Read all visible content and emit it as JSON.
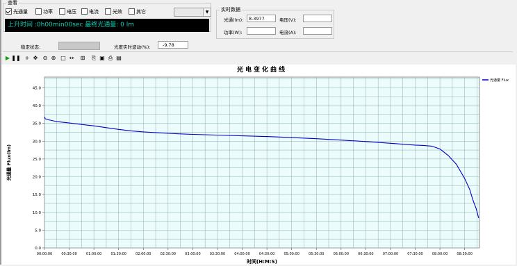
{
  "view_group": {
    "title": "查看",
    "checkboxes": [
      {
        "label": "光通量",
        "checked": true
      },
      {
        "label": "功率",
        "checked": false
      },
      {
        "label": "电压",
        "checked": false
      },
      {
        "label": "电流",
        "checked": false
      },
      {
        "label": "光效",
        "checked": false
      },
      {
        "label": "其它",
        "checked": false
      }
    ],
    "display_text": "上升时间 :0h00min00sec  最终光通量: 0 lm"
  },
  "realtime_group": {
    "title": "实时数据",
    "flux_label": "光通(lm):",
    "flux_value": "8.3977",
    "voltage_label": "电压(V):",
    "voltage_value": "",
    "power_label": "功率(W):",
    "power_value": "",
    "current_label": "电流(A):",
    "current_value": ""
  },
  "status": {
    "stability_label": "稳定状态:",
    "fluctuation_label": "光度实时波动(%):",
    "fluctuation_value": "-9.78"
  },
  "toolbar": {
    "icons": [
      "play-icon",
      "pause-icon",
      "crosshair-icon",
      "pan-icon",
      "zoom-out-icon",
      "zoom-in-icon",
      "select-icon",
      "fit-icon",
      "properties-icon",
      "copy-icon",
      "save-icon",
      "print-icon",
      "print-preview-icon"
    ]
  },
  "colors": {
    "series": "#0000c8",
    "grid": "#8db0b0",
    "plot_bg": "#ecfbfb",
    "lcd_text": "#0ecfb4"
  },
  "chart_data": {
    "type": "line",
    "title": "光电变化曲线",
    "xlabel": "时间(H:M:S)",
    "ylabel": "光通量 Flux(lm)",
    "legend": [
      "光通量 Flux"
    ],
    "legend_position": "right",
    "grid": true,
    "ylim": [
      0,
      48
    ],
    "yticks": [
      "0.0",
      "5.0",
      "10.0",
      "15.0",
      "20.0",
      "25.0",
      "30.0",
      "35.0",
      "40.0",
      "45.0"
    ],
    "xticks": [
      "00:00:00",
      "00:30:00",
      "01:00:00",
      "01:30:00",
      "02:00:00",
      "02:30:00",
      "03:00:00",
      "03:30:00",
      "04:00:00",
      "04:30:00",
      "05:00:00",
      "05:30:00",
      "06:00:00",
      "06:30:00",
      "07:00:00",
      "07:30:00",
      "08:00:00",
      "08:30:00"
    ],
    "xlim": [
      "00:00:00",
      "08:48:00"
    ],
    "series": [
      {
        "name": "光通量 Flux",
        "x": [
          "00:00:00",
          "00:01:00",
          "00:05:00",
          "00:15:00",
          "00:30:00",
          "00:45:00",
          "01:00:00",
          "01:15:00",
          "01:30:00",
          "01:45:00",
          "02:00:00",
          "02:30:00",
          "03:00:00",
          "03:30:00",
          "04:00:00",
          "04:30:00",
          "05:00:00",
          "05:30:00",
          "06:00:00",
          "06:30:00",
          "07:00:00",
          "07:30:00",
          "07:40:00",
          "07:50:00",
          "08:00:00",
          "08:10:00",
          "08:20:00",
          "08:30:00",
          "08:36:00",
          "08:40:00",
          "08:44:00",
          "08:47:00"
        ],
        "values": [
          36.8,
          36.3,
          36.0,
          35.5,
          35.1,
          34.7,
          34.3,
          33.8,
          33.3,
          32.9,
          32.6,
          32.2,
          31.9,
          31.7,
          31.5,
          31.3,
          31.0,
          30.7,
          30.3,
          29.9,
          29.4,
          28.9,
          28.8,
          28.6,
          27.8,
          26.0,
          23.5,
          19.5,
          16.5,
          13.5,
          11.0,
          8.4
        ]
      }
    ]
  }
}
